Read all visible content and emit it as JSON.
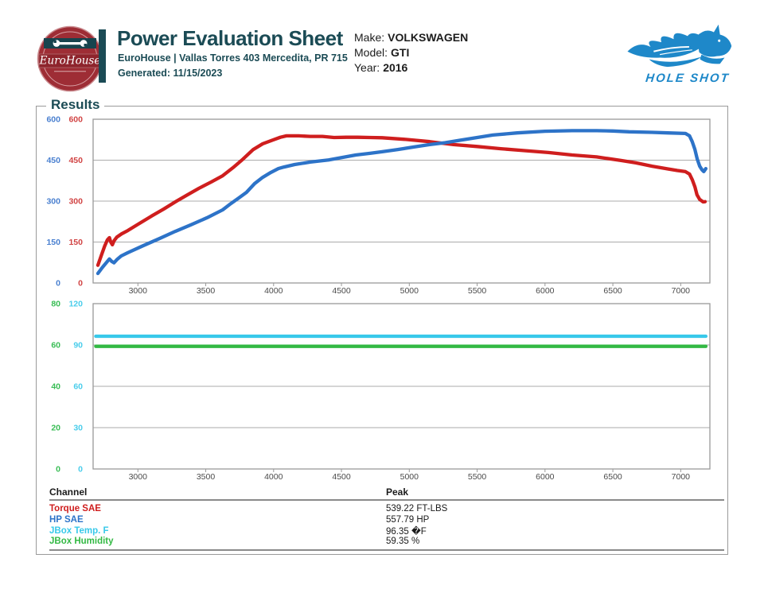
{
  "colors": {
    "teal": "#1b4b55",
    "logo_red": "#9e2d35",
    "logo_band_red": "#8e242c",
    "brand_blue": "#1e88c9",
    "red": "#cf1e1e",
    "blue": "#2d73c8",
    "cyan": "#38c9ea",
    "green": "#33b944",
    "red_label": "#d14444",
    "blue_label": "#4a80d0",
    "cyan_label": "#4acdeb",
    "green_label": "#39bd55",
    "grid": "#ababab",
    "border": "#999999",
    "tick_text": "#4a4a4a"
  },
  "header": {
    "logo_brand": "EuroHouse",
    "title": "Power Evaluation Sheet",
    "subtitle": "EuroHouse | Vallas Torres 403 Mercedita, PR 715",
    "generated": "Generated: 11/15/2023",
    "vehicle": {
      "make_label": "Make:",
      "make": "VOLKSWAGEN",
      "model_label": "Model:",
      "model": "GTI",
      "year_label": "Year:",
      "year": "2016"
    },
    "brand_name": "HOLE SHOT"
  },
  "results": {
    "section_title": "Results"
  },
  "chart_data": [
    {
      "type": "line",
      "title": "",
      "xlim": [
        2670,
        7215
      ],
      "xticks": [
        3000,
        3500,
        4000,
        4500,
        5000,
        5500,
        6000,
        6500,
        7000
      ],
      "grid": true,
      "axes": [
        {
          "color_key": "blue",
          "lim": [
            0,
            600
          ],
          "ticks": [
            0,
            150,
            300,
            450,
            600
          ]
        },
        {
          "color_key": "red",
          "lim": [
            0,
            600
          ],
          "ticks": [
            0,
            150,
            300,
            450,
            600
          ]
        }
      ],
      "series": [
        {
          "name": "Torque SAE",
          "color_key": "red",
          "axis": 1,
          "points": [
            [
              2705,
              65
            ],
            [
              2730,
              100
            ],
            [
              2755,
              135
            ],
            [
              2775,
              158
            ],
            [
              2790,
              166
            ],
            [
              2800,
              150
            ],
            [
              2812,
              140
            ],
            [
              2825,
              155
            ],
            [
              2845,
              168
            ],
            [
              2880,
              180
            ],
            [
              2925,
              192
            ],
            [
              3010,
              218
            ],
            [
              3100,
              245
            ],
            [
              3190,
              271
            ],
            [
              3275,
              297
            ],
            [
              3365,
              323
            ],
            [
              3450,
              347
            ],
            [
              3540,
              370
            ],
            [
              3625,
              393
            ],
            [
              3700,
              422
            ],
            [
              3775,
              454
            ],
            [
              3850,
              489
            ],
            [
              3920,
              510
            ],
            [
              3995,
              524
            ],
            [
              4050,
              534
            ],
            [
              4095,
              539
            ],
            [
              4185,
              539
            ],
            [
              4270,
              537
            ],
            [
              4360,
              537
            ],
            [
              4445,
              533
            ],
            [
              4535,
              534
            ],
            [
              4620,
              534
            ],
            [
              4710,
              533
            ],
            [
              4800,
              532
            ],
            [
              4975,
              526
            ],
            [
              5150,
              518
            ],
            [
              5325,
              507
            ],
            [
              5500,
              500
            ],
            [
              5675,
              492
            ],
            [
              5850,
              485
            ],
            [
              6025,
              478
            ],
            [
              6200,
              469
            ],
            [
              6380,
              462
            ],
            [
              6555,
              449
            ],
            [
              6670,
              440
            ],
            [
              6790,
              428
            ],
            [
              6905,
              418
            ],
            [
              6975,
              412
            ],
            [
              7035,
              408
            ],
            [
              7065,
              399
            ],
            [
              7085,
              379
            ],
            [
              7105,
              352
            ],
            [
              7120,
              323
            ],
            [
              7140,
              306
            ],
            [
              7165,
              297
            ],
            [
              7180,
              298
            ]
          ]
        },
        {
          "name": "HP SAE",
          "color_key": "blue",
          "axis": 0,
          "points": [
            [
              2705,
              35
            ],
            [
              2735,
              55
            ],
            [
              2770,
              76
            ],
            [
              2790,
              88
            ],
            [
              2807,
              79
            ],
            [
              2824,
              74
            ],
            [
              2848,
              87
            ],
            [
              2877,
              99
            ],
            [
              2925,
              111
            ],
            [
              3040,
              137
            ],
            [
              3160,
              163
            ],
            [
              3275,
              189
            ],
            [
              3390,
              213
            ],
            [
              3510,
              239
            ],
            [
              3625,
              268
            ],
            [
              3685,
              291
            ],
            [
              3745,
              312
            ],
            [
              3800,
              332
            ],
            [
              3860,
              364
            ],
            [
              3920,
              387
            ],
            [
              3980,
              405
            ],
            [
              4035,
              419
            ],
            [
              4077,
              425
            ],
            [
              4155,
              434
            ],
            [
              4270,
              443
            ],
            [
              4405,
              451
            ],
            [
              4505,
              460
            ],
            [
              4605,
              469
            ],
            [
              4710,
              475
            ],
            [
              4800,
              481
            ],
            [
              4915,
              489
            ],
            [
              5030,
              498
            ],
            [
              5150,
              507
            ],
            [
              5265,
              514
            ],
            [
              5385,
              524
            ],
            [
              5500,
              533
            ],
            [
              5615,
              542
            ],
            [
              5795,
              550
            ],
            [
              6000,
              556
            ],
            [
              6200,
              558
            ],
            [
              6380,
              558
            ],
            [
              6500,
              557
            ],
            [
              6620,
              554
            ],
            [
              6790,
              552
            ],
            [
              6905,
              550
            ],
            [
              7035,
              548
            ],
            [
              7065,
              539
            ],
            [
              7085,
              518
            ],
            [
              7105,
              489
            ],
            [
              7122,
              454
            ],
            [
              7140,
              428
            ],
            [
              7158,
              414
            ],
            [
              7170,
              408
            ],
            [
              7185,
              419
            ]
          ]
        }
      ]
    },
    {
      "type": "line",
      "title": "",
      "xlim": [
        2670,
        7215
      ],
      "xticks": [
        3000,
        3500,
        4000,
        4500,
        5000,
        5500,
        6000,
        6500,
        7000
      ],
      "grid": true,
      "axes": [
        {
          "color_key": "green",
          "lim": [
            0,
            80
          ],
          "ticks": [
            0,
            20,
            40,
            60,
            80
          ]
        },
        {
          "color_key": "cyan",
          "lim": [
            0,
            120
          ],
          "ticks": [
            0,
            30,
            60,
            90,
            120
          ]
        }
      ],
      "series": [
        {
          "name": "JBox Temp. F",
          "color_key": "cyan",
          "axis": 1,
          "points": [
            [
              2690,
              96.35
            ],
            [
              7185,
              96.35
            ]
          ]
        },
        {
          "name": "JBox Humidity",
          "color_key": "green",
          "axis": 0,
          "points": [
            [
              2690,
              59.35
            ],
            [
              7185,
              59.35
            ]
          ]
        }
      ]
    }
  ],
  "table": {
    "channel_header": "Channel",
    "peak_header": "Peak",
    "rows": [
      {
        "channel": "Torque SAE",
        "peak": "539.22 FT-LBS",
        "color_key": "red"
      },
      {
        "channel": "HP SAE",
        "peak": "557.79 HP",
        "color_key": "blue"
      },
      {
        "channel": "JBox Temp. F",
        "peak": "96.35 �F",
        "color_key": "cyan"
      },
      {
        "channel": "JBox Humidity",
        "peak": "59.35 %",
        "color_key": "green"
      }
    ]
  }
}
